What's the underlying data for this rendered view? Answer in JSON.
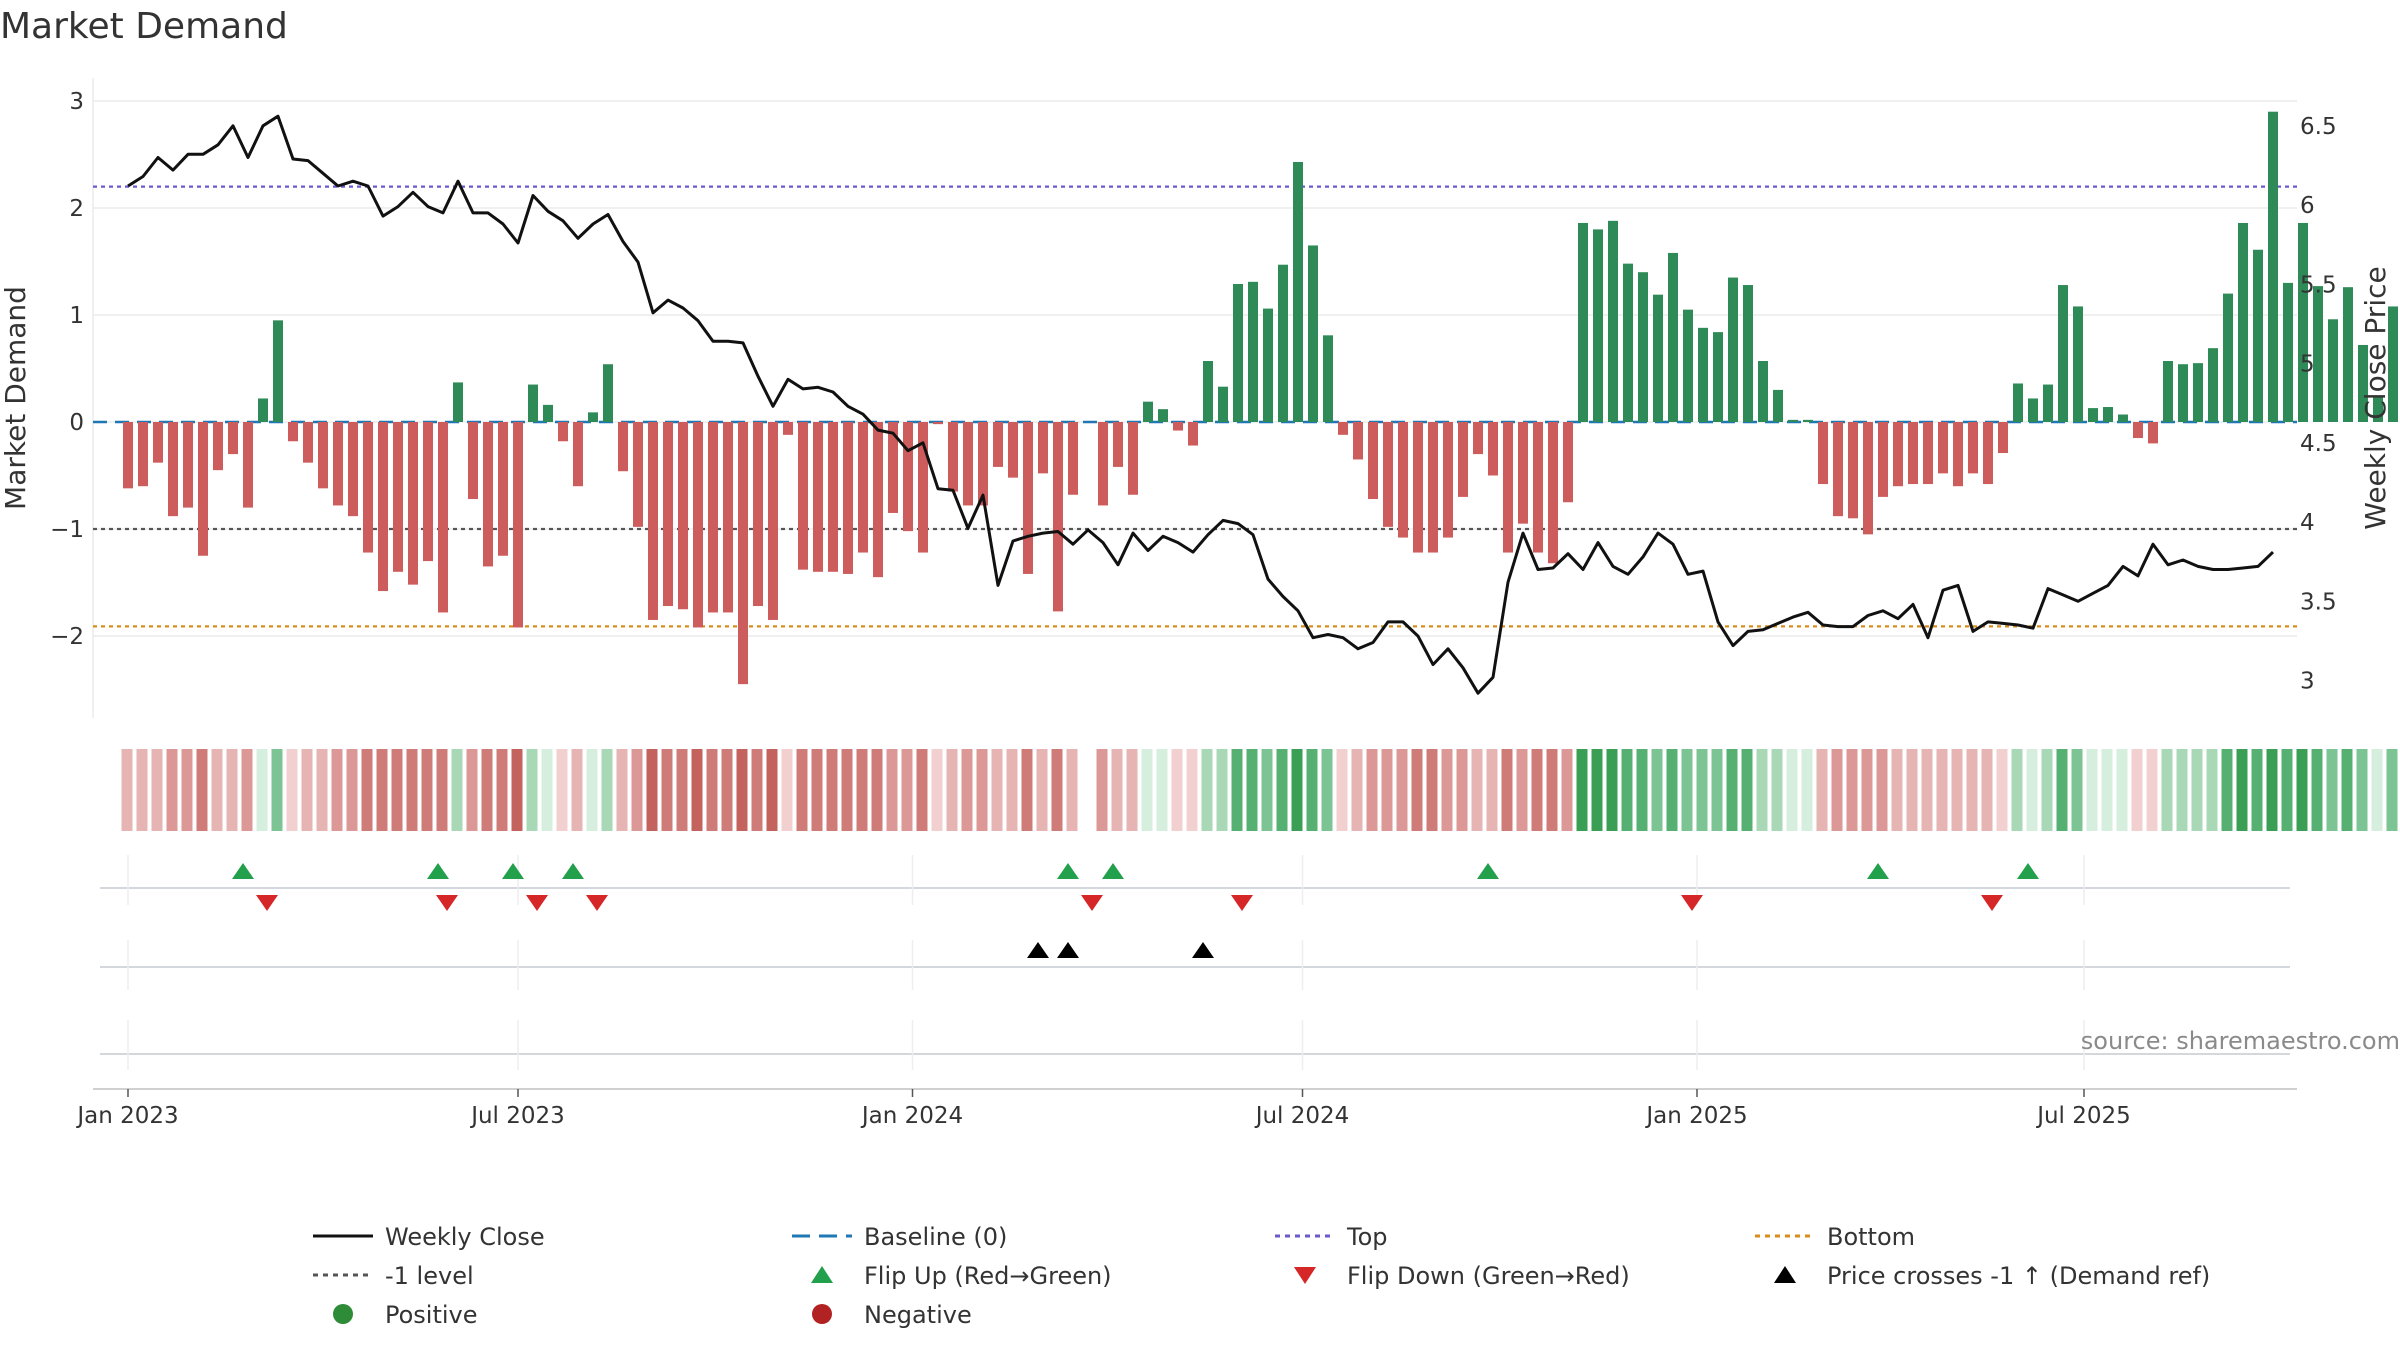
{
  "chart_data": {
    "type": "bar",
    "title": "Market Demand",
    "ylabel_left": "Market Demand",
    "ylabel_right": "Weekly Close Price",
    "source": "source: sharemaestro.com",
    "ylim_left": [
      -2.7,
      3.15
    ],
    "yticks_left": [
      {
        "v": 3,
        "label": "3"
      },
      {
        "v": 2,
        "label": "2"
      },
      {
        "v": 1,
        "label": "1"
      },
      {
        "v": 0,
        "label": "0"
      },
      {
        "v": -1,
        "label": "−1"
      },
      {
        "v": -2,
        "label": "−2"
      }
    ],
    "ylim_right": [
      2.83,
      6.75
    ],
    "yticks_right": [
      {
        "v": 6.5,
        "label": "6.5"
      },
      {
        "v": 6,
        "label": "6"
      },
      {
        "v": 5.5,
        "label": "5.5"
      },
      {
        "v": 5,
        "label": "5"
      },
      {
        "v": 4.5,
        "label": "4.5"
      },
      {
        "v": 4,
        "label": "4"
      },
      {
        "v": 3.5,
        "label": "3.5"
      },
      {
        "v": 3,
        "label": "3"
      }
    ],
    "xlim_week": [
      -1.7,
      143
    ],
    "xticks": [
      {
        "week": 0,
        "label": "Jan 2023"
      },
      {
        "week": 26,
        "label": "Jul 2023"
      },
      {
        "week": 52.3,
        "label": "Jan 2024"
      },
      {
        "week": 78.3,
        "label": "Jul 2024"
      },
      {
        "week": 104.6,
        "label": "Jan 2025"
      },
      {
        "week": 130.4,
        "label": "Jul 2025"
      }
    ],
    "reference_lines": {
      "top": 2.2,
      "minus_one": -1,
      "bottom": -1.91,
      "baseline": 0
    },
    "demand": [
      -0.62,
      -0.6,
      -0.38,
      -0.88,
      -0.8,
      -1.25,
      -0.45,
      -0.3,
      -0.8,
      0.22,
      0.95,
      -0.18,
      -0.38,
      -0.62,
      -0.78,
      -0.88,
      -1.22,
      -1.58,
      -1.4,
      -1.52,
      -1.3,
      -1.78,
      0.37,
      -0.72,
      -1.35,
      -1.25,
      -1.92,
      0.35,
      0.16,
      -0.18,
      -0.6,
      0.09,
      0.54,
      -0.46,
      -0.98,
      -1.85,
      -1.72,
      -1.75,
      -1.92,
      -1.78,
      -1.78,
      -2.45,
      -1.72,
      -1.85,
      -0.12,
      -1.38,
      -1.4,
      -1.4,
      -1.42,
      -1.22,
      -1.45,
      -0.85,
      -1.02,
      -1.22,
      -0.02,
      -0.65,
      -0.78,
      -0.78,
      -0.42,
      -0.52,
      -1.42,
      -0.48,
      -1.77,
      -0.68,
      0,
      -0.78,
      -0.42,
      -0.68,
      0.19,
      0.12,
      -0.08,
      -0.22,
      0.57,
      0.33,
      1.29,
      1.31,
      1.06,
      1.47,
      2.43,
      1.65,
      0.81,
      -0.12,
      -0.35,
      -0.72,
      -0.98,
      -1.08,
      -1.22,
      -1.22,
      -1.08,
      -0.7,
      -0.3,
      -0.5,
      -1.22,
      -0.95,
      -1.22,
      -1.32,
      -0.75,
      1.86,
      1.8,
      1.88,
      1.48,
      1.4,
      1.19,
      1.58,
      1.05,
      0.88,
      0.84,
      1.35,
      1.28,
      0.57,
      0.3,
      0.02,
      0.02,
      -0.58,
      -0.88,
      -0.9,
      -1.05,
      -0.7,
      -0.6,
      -0.58,
      -0.58,
      -0.48,
      -0.6,
      -0.48,
      -0.58,
      -0.29,
      0.36,
      0.22,
      0.35,
      1.28,
      1.08,
      0.13,
      0.14,
      0.07,
      -0.15,
      -0.2,
      0.57,
      0.54,
      0.55,
      0.69,
      1.2,
      1.86,
      1.61,
      2.9,
      1.3,
      1.86,
      1.27,
      0.96,
      1.26,
      0.72,
      0.23,
      1.08
    ],
    "close": [
      6.12,
      6.18,
      6.3,
      6.22,
      6.32,
      6.32,
      6.38,
      6.5,
      6.3,
      6.5,
      6.56,
      6.29,
      6.28,
      6.2,
      6.12,
      6.15,
      6.12,
      5.93,
      5.99,
      6.08,
      5.99,
      5.95,
      6.15,
      5.95,
      5.95,
      5.88,
      5.76,
      6.06,
      5.96,
      5.9,
      5.79,
      5.88,
      5.94,
      5.77,
      5.64,
      5.32,
      5.4,
      5.35,
      5.27,
      5.14,
      5.14,
      5.13,
      4.92,
      4.73,
      4.9,
      4.84,
      4.85,
      4.82,
      4.73,
      4.68,
      4.58,
      4.56,
      4.45,
      4.5,
      4.21,
      4.2,
      3.96,
      4.17,
      3.6,
      3.88,
      3.91,
      3.93,
      3.94,
      3.86,
      3.95,
      3.87,
      3.73,
      3.93,
      3.82,
      3.91,
      3.87,
      3.81,
      3.92,
      4.01,
      3.99,
      3.92,
      3.64,
      3.53,
      3.44,
      3.27,
      3.29,
      3.27,
      3.2,
      3.24,
      3.37,
      3.37,
      3.28,
      3.1,
      3.2,
      3.08,
      2.92,
      3.02,
      3.62,
      3.93,
      3.7,
      3.71,
      3.8,
      3.7,
      3.87,
      3.72,
      3.67,
      3.78,
      3.93,
      3.86,
      3.67,
      3.69,
      3.37,
      3.22,
      3.31,
      3.32,
      3.36,
      3.4,
      3.43,
      3.35,
      3.34,
      3.34,
      3.41,
      3.44,
      3.39,
      3.48,
      3.27,
      3.57,
      3.6,
      3.31,
      3.37,
      3.36,
      3.35,
      3.33,
      3.58,
      3.54,
      3.5,
      3.55,
      3.6,
      3.72,
      3.66,
      3.86,
      3.73,
      3.76,
      3.72,
      3.7,
      3.7,
      3.71,
      3.72,
      3.81
    ],
    "flip_up_weeks": [
      7,
      20,
      25,
      29,
      62,
      65,
      90,
      116,
      126
    ],
    "flip_down_weeks": [
      9,
      21,
      27,
      31,
      64,
      74,
      104,
      124
    ],
    "price_cross_weeks": [
      60,
      62,
      71
    ],
    "legend": [
      {
        "key": "weekly_close",
        "label": "Weekly Close",
        "color": "#111111",
        "style": "line"
      },
      {
        "key": "baseline",
        "label": "Baseline (0)",
        "color": "#1f77b4",
        "style": "dash"
      },
      {
        "key": "top",
        "label": "Top",
        "color": "#6a5acd",
        "style": "dot"
      },
      {
        "key": "bottom",
        "label": "Bottom",
        "color": "#d98e1c",
        "style": "dot"
      },
      {
        "key": "minus_one",
        "label": "-1 level",
        "color": "#555555",
        "style": "dot"
      },
      {
        "key": "flip_up",
        "label": "Flip Up (Red→Green)",
        "color": "#22a04b",
        "style": "tri-up"
      },
      {
        "key": "flip_down",
        "label": "Flip Down (Green→Red)",
        "color": "#d62728",
        "style": "tri-down"
      },
      {
        "key": "price_cross",
        "label": "Price crosses -1 ↑ (Demand ref)",
        "color": "#000000",
        "style": "tri-up"
      },
      {
        "key": "positive",
        "label": "Positive",
        "color": "#2e8b37",
        "style": "circle"
      },
      {
        "key": "negative",
        "label": "Negative",
        "color": "#b22222",
        "style": "circle"
      }
    ]
  },
  "colors": {
    "positive": "#2e8a57",
    "negative": "#cd5c5c",
    "grid": "#e6e6e6",
    "axis": "#cccccc"
  }
}
